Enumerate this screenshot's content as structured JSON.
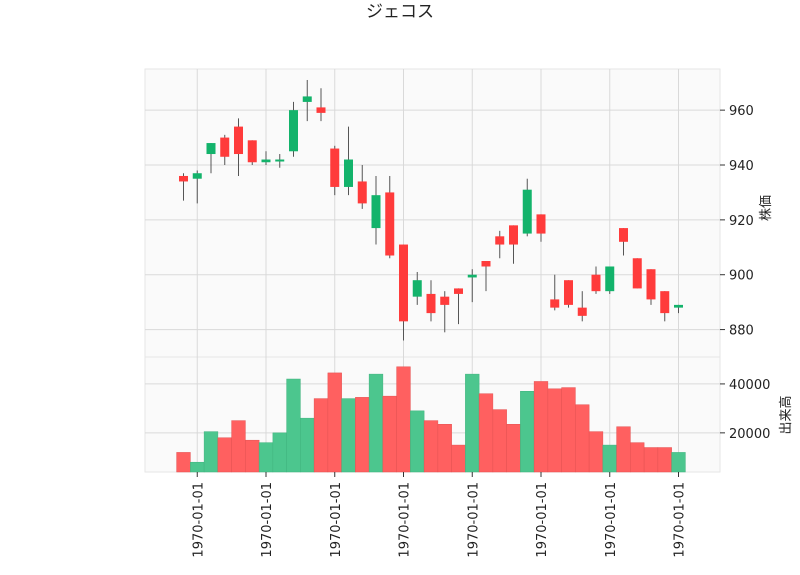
{
  "chart_data": {
    "type": "candlestick",
    "title": "ジェコス",
    "price_ylabel": "株価",
    "volume_ylabel": "出来高",
    "price_ylim": [
      870,
      975
    ],
    "price_yticks": [
      880,
      900,
      920,
      940,
      960
    ],
    "volume_ylim": [
      4000,
      51000
    ],
    "volume_yticks": [
      20000,
      40000
    ],
    "x_tick_labels": [
      "1970-01-01",
      "1970-01-01",
      "1970-01-01",
      "1970-01-01",
      "1970-01-01",
      "1970-01-01",
      "1970-01-01",
      "1970-01-01"
    ],
    "x_tick_positions": [
      1,
      6,
      11,
      16,
      21,
      26,
      31,
      36
    ],
    "up_color": "#13b36b",
    "down_color": "#ff3b3b",
    "grid": true,
    "candles": [
      {
        "open": 936,
        "high": 937,
        "low": 927,
        "close": 934,
        "volume": 12000
      },
      {
        "open": 935,
        "high": 938,
        "low": 926,
        "close": 937,
        "volume": 8000
      },
      {
        "open": 944,
        "high": 948,
        "low": 937,
        "close": 948,
        "volume": 20500
      },
      {
        "open": 950,
        "high": 951,
        "low": 940,
        "close": 943,
        "volume": 18000
      },
      {
        "open": 954,
        "high": 957,
        "low": 936,
        "close": 944,
        "volume": 25000
      },
      {
        "open": 949,
        "high": 949,
        "low": 940,
        "close": 941,
        "volume": 17000
      },
      {
        "open": 941,
        "high": 945,
        "low": 940,
        "close": 942,
        "volume": 16000
      },
      {
        "open": 942,
        "high": 944,
        "low": 939,
        "close": 942,
        "volume": 20000
      },
      {
        "open": 945,
        "high": 963,
        "low": 943,
        "close": 960,
        "volume": 42000
      },
      {
        "open": 963,
        "high": 971,
        "low": 956,
        "close": 965,
        "volume": 26000
      },
      {
        "open": 961,
        "high": 968,
        "low": 956,
        "close": 959,
        "volume": 34000
      },
      {
        "open": 946,
        "high": 947,
        "low": 929,
        "close": 932,
        "volume": 44500
      },
      {
        "open": 932,
        "high": 954,
        "low": 929,
        "close": 942,
        "volume": 34000
      },
      {
        "open": 934,
        "high": 940,
        "low": 924,
        "close": 926,
        "volume": 34500
      },
      {
        "open": 917,
        "high": 936,
        "low": 911,
        "close": 929,
        "volume": 44000
      },
      {
        "open": 930,
        "high": 936,
        "low": 906,
        "close": 907,
        "volume": 35000
      },
      {
        "open": 911,
        "high": 911,
        "low": 876,
        "close": 883,
        "volume": 47000
      },
      {
        "open": 892,
        "high": 901,
        "low": 889,
        "close": 898,
        "volume": 29000
      },
      {
        "open": 893,
        "high": 898,
        "low": 883,
        "close": 886,
        "volume": 25000
      },
      {
        "open": 892,
        "high": 894,
        "low": 879,
        "close": 889,
        "volume": 23500
      },
      {
        "open": 895,
        "high": 895,
        "low": 882,
        "close": 893,
        "volume": 15000
      },
      {
        "open": 899,
        "high": 902,
        "low": 890,
        "close": 900,
        "volume": 44000
      },
      {
        "open": 905,
        "high": 905,
        "low": 894,
        "close": 903,
        "volume": 36000
      },
      {
        "open": 914,
        "high": 916,
        "low": 906,
        "close": 911,
        "volume": 29500
      },
      {
        "open": 918,
        "high": 918,
        "low": 904,
        "close": 911,
        "volume": 23500
      },
      {
        "open": 915,
        "high": 935,
        "low": 914,
        "close": 931,
        "volume": 37000
      },
      {
        "open": 922,
        "high": 922,
        "low": 912,
        "close": 915,
        "volume": 41000
      },
      {
        "open": 891,
        "high": 900,
        "low": 887,
        "close": 888,
        "volume": 38000
      },
      {
        "open": 898,
        "high": 898,
        "low": 888,
        "close": 889,
        "volume": 38500
      },
      {
        "open": 888,
        "high": 894,
        "low": 883,
        "close": 885,
        "volume": 31500
      },
      {
        "open": 900,
        "high": 903,
        "low": 893,
        "close": 894,
        "volume": 20500
      },
      {
        "open": 894,
        "high": 903,
        "low": 893,
        "close": 903,
        "volume": 15000
      },
      {
        "open": 917,
        "high": 917,
        "low": 907,
        "close": 912,
        "volume": 22500
      },
      {
        "open": 906,
        "high": 906,
        "low": 895,
        "close": 895,
        "volume": 16000
      },
      {
        "open": 902,
        "high": 902,
        "low": 889,
        "close": 891,
        "volume": 14000
      },
      {
        "open": 894,
        "high": 894,
        "low": 883,
        "close": 886,
        "volume": 14000
      },
      {
        "open": 888,
        "high": 889,
        "low": 886,
        "close": 889,
        "volume": 12000
      }
    ]
  }
}
